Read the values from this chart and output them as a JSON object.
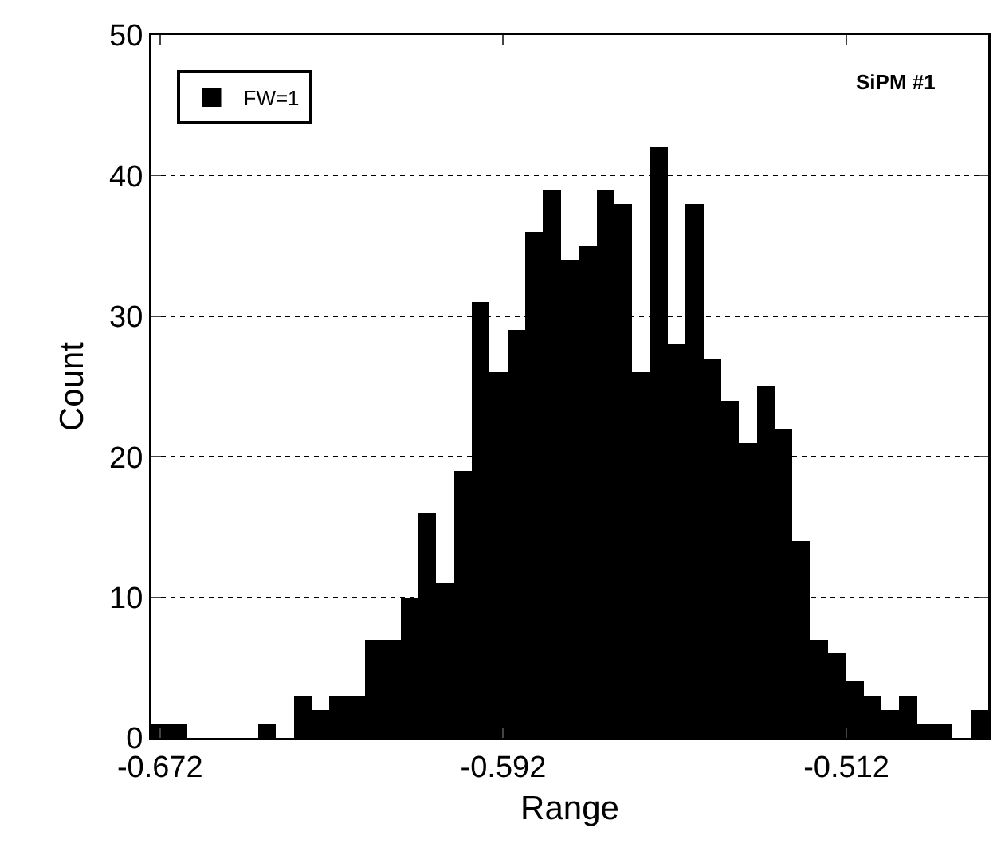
{
  "chart_data": {
    "type": "histogram",
    "xlabel": "Range",
    "ylabel": "Count",
    "bins": [
      -0.674,
      -0.66985,
      -0.6657,
      -0.66155,
      -0.6574,
      -0.65325,
      -0.6491,
      -0.64495,
      -0.6408,
      -0.63665,
      -0.6325,
      -0.62835,
      -0.6242,
      -0.62005,
      -0.6159,
      -0.61175,
      -0.6076,
      -0.60345,
      -0.5993,
      -0.59515,
      -0.591,
      -0.58685,
      -0.5827,
      -0.57855,
      -0.5744,
      -0.57025,
      -0.5661,
      -0.56195,
      -0.5578,
      -0.55365,
      -0.5495,
      -0.54535,
      -0.5412,
      -0.53705,
      -0.5329,
      -0.52875,
      -0.5246,
      -0.52045,
      -0.5163,
      -0.51215,
      -0.508,
      -0.50385,
      -0.4997,
      -0.49555,
      -0.4914,
      -0.48725,
      -0.4831,
      -0.47895
    ],
    "series": [
      {
        "name": "FW=1",
        "color": "#000000",
        "values": [
          1,
          1,
          0,
          0,
          0,
          0,
          1,
          0,
          3,
          2,
          3,
          3,
          7,
          7,
          10,
          16,
          11,
          19,
          31,
          26,
          29,
          36,
          39,
          34,
          35,
          39,
          38,
          26,
          42,
          28,
          38,
          27,
          24,
          21,
          25,
          22,
          14,
          7,
          6,
          4,
          3,
          2,
          3,
          1,
          1,
          0,
          2
        ]
      }
    ],
    "annotations": [
      "SiPM #1"
    ],
    "xlim": [
      -0.674,
      -0.47895
    ],
    "xticks": [
      -0.672,
      -0.592,
      -0.512
    ],
    "ylim": [
      0,
      50
    ],
    "yticks": [
      0,
      10,
      20,
      30,
      40,
      50
    ],
    "grid": "y",
    "legend": "top left"
  }
}
